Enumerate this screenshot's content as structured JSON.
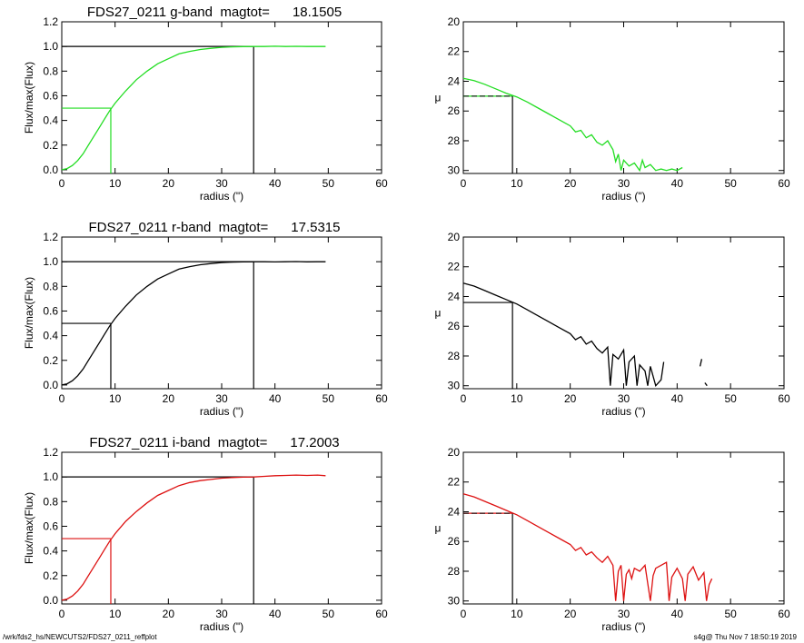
{
  "footer": {
    "path": "/wrk/fds2_hs/NEWCUTS2/FDS27_0211_reffplot",
    "stamp": "s4g@  Thu Nov  7 18:50:19 2019"
  },
  "chart_data": [
    {
      "type": "line",
      "panel": "growth-curve",
      "band": "g",
      "title": "FDS27_0211 g-band  magtot=      18.1505",
      "xlabel": "radius (\")",
      "ylabel": "Flux/max(Flux)",
      "xlim": [
        0,
        60
      ],
      "ylim": [
        -0.03,
        1.2
      ],
      "xticks": [
        0,
        10,
        20,
        30,
        40,
        50,
        60
      ],
      "yticks": [
        0.0,
        0.2,
        0.4,
        0.6,
        0.8,
        1.0,
        1.2
      ],
      "color": "#22dd22",
      "half_light_radius": 9.2,
      "total_radius": 36.0,
      "x": [
        0,
        1,
        2,
        3,
        4,
        5,
        6,
        7,
        8,
        9,
        10,
        12,
        14,
        16,
        18,
        20,
        22,
        24,
        26,
        28,
        30,
        32,
        34,
        36,
        38,
        40,
        42,
        44,
        46,
        48,
        49.5
      ],
      "y": [
        0.0,
        0.01,
        0.035,
        0.075,
        0.13,
        0.2,
        0.27,
        0.34,
        0.41,
        0.48,
        0.54,
        0.64,
        0.73,
        0.8,
        0.86,
        0.9,
        0.94,
        0.96,
        0.975,
        0.985,
        0.993,
        0.997,
        0.999,
        1.0,
        1.0,
        1.002,
        1.0,
        1.001,
        1.0,
        1.0,
        1.0
      ]
    },
    {
      "type": "line",
      "panel": "surface-brightness",
      "band": "g",
      "ylabel": "μ",
      "xlabel": "radius (\")",
      "xlim": [
        0,
        60
      ],
      "ylim": [
        20,
        30.2
      ],
      "inverted_y": true,
      "xticks": [
        0,
        10,
        20,
        30,
        40,
        50,
        60
      ],
      "yticks": [
        20,
        22,
        24,
        26,
        28,
        30
      ],
      "color": "#22dd22",
      "half_light_radius": 9.2,
      "effective_mu": 25.0,
      "x": [
        0,
        2,
        4,
        6,
        8,
        10,
        12,
        14,
        16,
        18,
        20,
        21,
        22,
        23,
        24,
        25,
        26,
        27,
        28,
        28.5,
        29,
        29.5,
        30,
        31,
        32,
        33,
        33.5,
        34,
        35,
        36,
        37,
        38,
        39,
        40,
        41
      ],
      "y": [
        23.8,
        23.95,
        24.2,
        24.5,
        24.8,
        25.05,
        25.4,
        25.8,
        26.2,
        26.6,
        27.0,
        27.4,
        27.3,
        27.8,
        27.6,
        28.1,
        28.3,
        28.0,
        28.6,
        29.4,
        28.9,
        30.0,
        29.3,
        29.7,
        29.5,
        30.0,
        29.3,
        29.8,
        29.6,
        30.0,
        29.9,
        30.0,
        29.9,
        30.0,
        29.8
      ]
    },
    {
      "type": "line",
      "panel": "growth-curve",
      "band": "r",
      "title": "FDS27_0211 r-band  magtot=      17.5315",
      "xlabel": "radius (\")",
      "ylabel": "Flux/max(Flux)",
      "xlim": [
        0,
        60
      ],
      "ylim": [
        -0.03,
        1.2
      ],
      "xticks": [
        0,
        10,
        20,
        30,
        40,
        50,
        60
      ],
      "yticks": [
        0.0,
        0.2,
        0.4,
        0.6,
        0.8,
        1.0,
        1.2
      ],
      "color": "#000000",
      "half_light_radius": 9.2,
      "total_radius": 36.0,
      "x": [
        0,
        1,
        2,
        3,
        4,
        5,
        6,
        7,
        8,
        9,
        10,
        12,
        14,
        16,
        18,
        20,
        22,
        24,
        26,
        28,
        30,
        32,
        34,
        36,
        38,
        40,
        42,
        44,
        46,
        48,
        49.5
      ],
      "y": [
        0.0,
        0.01,
        0.035,
        0.075,
        0.13,
        0.2,
        0.27,
        0.34,
        0.41,
        0.48,
        0.54,
        0.64,
        0.73,
        0.8,
        0.86,
        0.9,
        0.94,
        0.96,
        0.975,
        0.985,
        0.993,
        0.997,
        0.999,
        1.0,
        1.0,
        0.998,
        1.0,
        1.001,
        0.999,
        1.0,
        1.0
      ]
    },
    {
      "type": "line",
      "panel": "surface-brightness",
      "band": "r",
      "ylabel": "μ",
      "xlabel": "radius (\")",
      "xlim": [
        0,
        60
      ],
      "ylim": [
        20,
        30.2
      ],
      "inverted_y": true,
      "xticks": [
        0,
        10,
        20,
        30,
        40,
        50,
        60
      ],
      "yticks": [
        20,
        22,
        24,
        26,
        28,
        30
      ],
      "color": "#000000",
      "half_light_radius": 9.2,
      "effective_mu": 24.4,
      "x": [
        0,
        2,
        4,
        6,
        8,
        10,
        12,
        14,
        16,
        18,
        20,
        21,
        22,
        23,
        24,
        25,
        26,
        27,
        27.5,
        28,
        29,
        30,
        30.5,
        31,
        32,
        32.5,
        33,
        34,
        34.5,
        35,
        36,
        37,
        37.5
      ],
      "y": [
        23.1,
        23.3,
        23.6,
        23.9,
        24.2,
        24.5,
        24.9,
        25.3,
        25.7,
        26.1,
        26.5,
        26.9,
        26.7,
        27.2,
        27.0,
        27.5,
        27.8,
        27.4,
        30.0,
        27.9,
        28.2,
        27.6,
        30.0,
        28.4,
        28.0,
        30.0,
        28.6,
        29.0,
        30.0,
        28.7,
        30.0,
        29.6,
        28.4
      ],
      "extra_segments": [
        [
          [
            44.3,
            28.7
          ],
          [
            44.6,
            28.2
          ]
        ],
        [
          [
            45.2,
            29.8
          ],
          [
            45.6,
            30.0
          ]
        ]
      ]
    },
    {
      "type": "line",
      "panel": "growth-curve",
      "band": "i",
      "title": "FDS27_0211 i-band  magtot=      17.2003",
      "xlabel": "radius (\")",
      "ylabel": "Flux/max(Flux)",
      "xlim": [
        0,
        60
      ],
      "ylim": [
        -0.03,
        1.2
      ],
      "xticks": [
        0,
        10,
        20,
        30,
        40,
        50,
        60
      ],
      "yticks": [
        0.0,
        0.2,
        0.4,
        0.6,
        0.8,
        1.0,
        1.2
      ],
      "color": "#dd1111",
      "half_light_radius": 9.2,
      "total_radius": 36.0,
      "x": [
        0,
        1,
        2,
        3,
        4,
        5,
        6,
        7,
        8,
        9,
        10,
        12,
        14,
        16,
        18,
        20,
        22,
        24,
        26,
        28,
        30,
        32,
        34,
        36,
        38,
        40,
        42,
        44,
        46,
        48,
        49.5
      ],
      "y": [
        0.0,
        0.01,
        0.035,
        0.075,
        0.13,
        0.2,
        0.27,
        0.34,
        0.41,
        0.48,
        0.54,
        0.64,
        0.72,
        0.79,
        0.85,
        0.89,
        0.93,
        0.955,
        0.97,
        0.98,
        0.99,
        0.995,
        0.998,
        1.0,
        1.005,
        1.01,
        1.012,
        1.015,
        1.012,
        1.015,
        1.01
      ]
    },
    {
      "type": "line",
      "panel": "surface-brightness",
      "band": "i",
      "ylabel": "μ",
      "xlabel": "radius (\")",
      "xlim": [
        0,
        60
      ],
      "ylim": [
        20,
        30.2
      ],
      "inverted_y": true,
      "xticks": [
        0,
        10,
        20,
        30,
        40,
        50,
        60
      ],
      "yticks": [
        20,
        22,
        24,
        26,
        28,
        30
      ],
      "color": "#dd1111",
      "half_light_radius": 9.2,
      "effective_mu": 24.1,
      "x": [
        0,
        2,
        4,
        6,
        8,
        10,
        12,
        14,
        16,
        18,
        20,
        21,
        22,
        23,
        24,
        25,
        26,
        27,
        28,
        28.5,
        29,
        29.5,
        30,
        30.5,
        31,
        31.5,
        32,
        33,
        34,
        35,
        35.5,
        36,
        37,
        38,
        38.5,
        39,
        40,
        41,
        41.5,
        42,
        43,
        44,
        45,
        45.5,
        46,
        46.5
      ],
      "y": [
        22.8,
        23.0,
        23.3,
        23.6,
        23.9,
        24.2,
        24.6,
        25.0,
        25.4,
        25.8,
        26.2,
        26.6,
        26.4,
        26.9,
        26.7,
        27.1,
        27.4,
        27.0,
        27.6,
        30.0,
        28.0,
        27.6,
        30.0,
        28.2,
        27.9,
        28.5,
        27.8,
        28.0,
        27.6,
        30.0,
        28.3,
        27.8,
        27.6,
        27.4,
        30.0,
        28.4,
        27.8,
        28.5,
        30.0,
        28.2,
        27.7,
        28.6,
        28.1,
        30.0,
        28.9,
        28.5
      ]
    }
  ]
}
